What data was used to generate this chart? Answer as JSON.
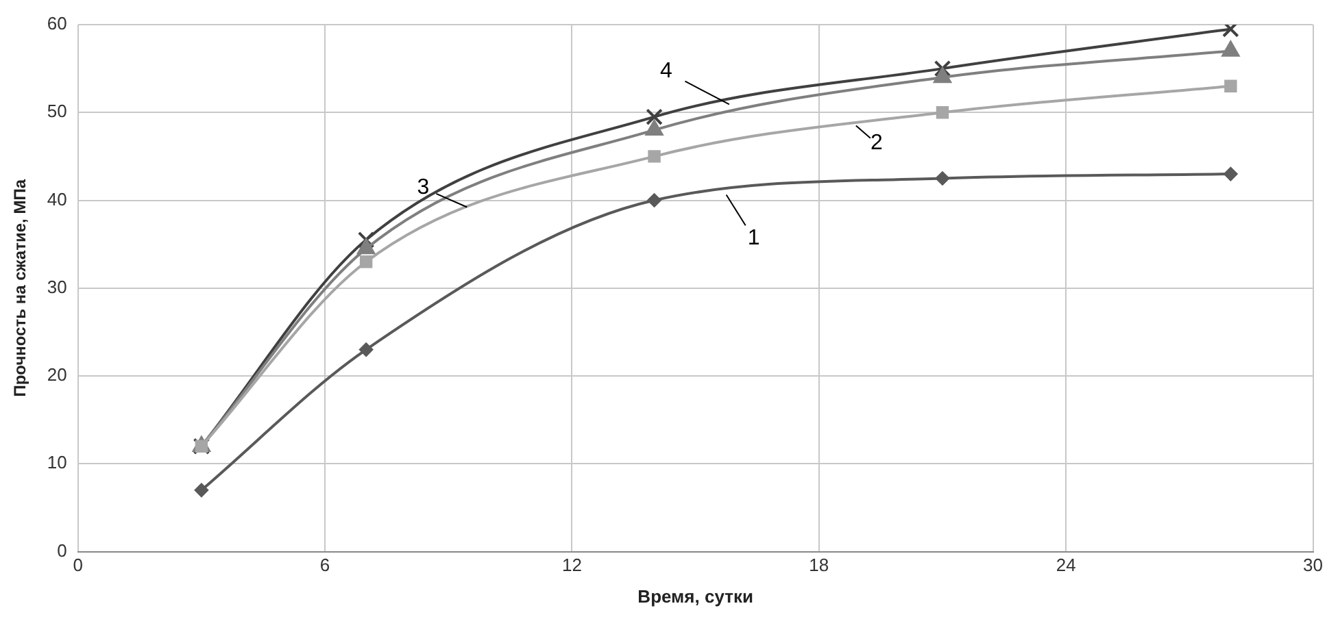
{
  "chart_data": {
    "type": "line",
    "xlabel": "Время, сутки",
    "ylabel": "Прочность на сжатие, МПа",
    "xlim": [
      0,
      30
    ],
    "xticks": [
      0,
      6,
      12,
      18,
      24,
      30
    ],
    "ylim": [
      0,
      60
    ],
    "yticks": [
      0,
      10,
      20,
      30,
      40,
      50,
      60
    ],
    "grid": true,
    "legend": false,
    "line_style": "solid",
    "series": [
      {
        "name": "1",
        "x": [
          3,
          7,
          14,
          21,
          28
        ],
        "values": [
          7,
          23,
          40,
          42.5,
          43
        ],
        "color": "#595959",
        "marker": "diamond"
      },
      {
        "name": "2",
        "x": [
          3,
          7,
          14,
          21,
          28
        ],
        "values": [
          12,
          33,
          45,
          50,
          53
        ],
        "color": "#a6a6a6",
        "marker": "square"
      },
      {
        "name": "3",
        "x": [
          3,
          7,
          14,
          21,
          28
        ],
        "values": [
          12,
          34.5,
          48,
          54,
          57
        ],
        "color": "#7f7f7f",
        "marker": "triangle"
      },
      {
        "name": "4",
        "x": [
          3,
          7,
          14,
          21,
          28
        ],
        "values": [
          12,
          35.5,
          49.5,
          55,
          59.5
        ],
        "color": "#404040",
        "marker": "cross"
      }
    ]
  }
}
